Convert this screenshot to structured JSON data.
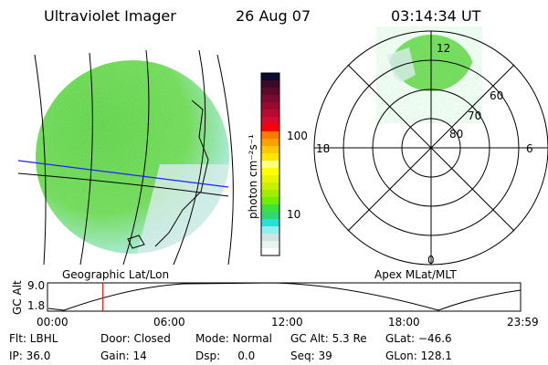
{
  "header": {
    "instrument": "Ultraviolet Imager",
    "date": "26 Aug 07",
    "time": "03:14:34 UT"
  },
  "colorbar": {
    "label": "photon cm⁻²s⁻¹",
    "ticks": [
      "100",
      "10"
    ],
    "colors": [
      "#0a0a33",
      "#3a0a2a",
      "#5a0a2a",
      "#7a0a30",
      "#990a30",
      "#b80a30",
      "#d80a30",
      "#ff0000",
      "#ff7a00",
      "#ffa000",
      "#ffc800",
      "#ffe600",
      "#ffff80",
      "#ffff00",
      "#e8f400",
      "#c8f000",
      "#a0ee00",
      "#70ee00",
      "#40e040",
      "#30d870",
      "#28e0d8",
      "#90f0f0",
      "#d0e4e4",
      "#eaf4ee",
      "#ffffff"
    ]
  },
  "left_panel": {
    "label": "Geographic Lat/Lon"
  },
  "polar": {
    "label": "Apex MLat/MLT",
    "mlt_labels": [
      "12",
      "18",
      "6",
      "0"
    ],
    "lat_labels": [
      "60",
      "70",
      "80"
    ]
  },
  "altitude_plot": {
    "ylabel": "GC Alt",
    "yticks": [
      "9.0",
      "1.8"
    ],
    "xticks": [
      "00:00",
      "06:00",
      "12:00",
      "18:00",
      "23:59"
    ],
    "current_time_fraction": 0.117,
    "marker_color": "#ff0000"
  },
  "status": {
    "row1": [
      "Flt: LBHL",
      "Door: Closed",
      "Mode: Normal",
      "GC Alt: 5.3 Re",
      "GLat: −46.6"
    ],
    "row2": [
      "IP: 36.0",
      "Gain: 14",
      "Dsp:     0.0",
      "Seq: 39",
      "GLon: 128.1"
    ]
  }
}
